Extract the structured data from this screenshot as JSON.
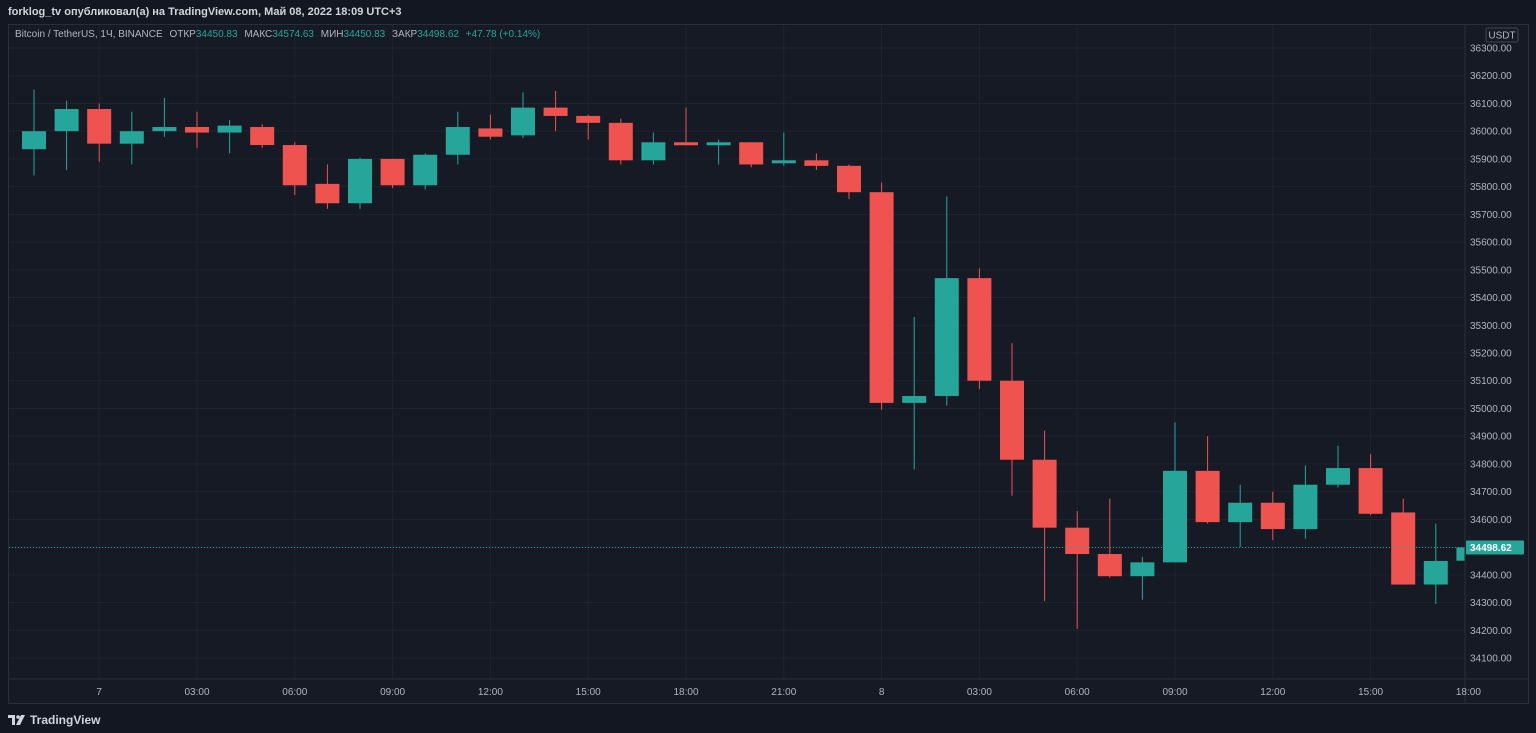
{
  "header": {
    "publish_line": "forklog_tv опубликовал(а) на TradingView.com, Май 08, 2022 18:09 UTC+3"
  },
  "legend": {
    "symbol": "Bitcoin / TetherUS, 1Ч, BINANCE",
    "open_label": "ОТКР",
    "open_value": "34450.83",
    "high_label": "МАКС",
    "high_value": "34574.63",
    "low_label": "МИН",
    "low_value": "34450.83",
    "close_label": "ЗАКР",
    "close_value": "34498.62",
    "change": "+47.78 (+0.14%)"
  },
  "colors": {
    "up": "#26a69a",
    "down": "#ef5350",
    "background": "#161a25",
    "grid": "#1f2330",
    "text": "#b2b5be"
  },
  "footer": {
    "brand": "TradingView",
    "logo_icon": "tradingview-logo-icon"
  },
  "chart_data": {
    "type": "candlestick",
    "title": "Bitcoin / TetherUS, 1Ч, BINANCE",
    "currency": "USDT",
    "ylim": [
      34000,
      36320
    ],
    "y_ticks": [
      34100,
      34200,
      34300,
      34400,
      34500,
      34600,
      34700,
      34800,
      34900,
      35000,
      35100,
      35200,
      35300,
      35400,
      35500,
      35600,
      35700,
      35800,
      35900,
      36000,
      36100,
      36200,
      36300
    ],
    "x_ticks": [
      {
        "label": "7",
        "bar": 2
      },
      {
        "label": "03:00",
        "bar": 5
      },
      {
        "label": "06:00",
        "bar": 8
      },
      {
        "label": "09:00",
        "bar": 11
      },
      {
        "label": "12:00",
        "bar": 14
      },
      {
        "label": "15:00",
        "bar": 17
      },
      {
        "label": "18:00",
        "bar": 20
      },
      {
        "label": "21:00",
        "bar": 23
      },
      {
        "label": "8",
        "bar": 26
      },
      {
        "label": "03:00",
        "bar": 29
      },
      {
        "label": "06:00",
        "bar": 32
      },
      {
        "label": "09:00",
        "bar": 35
      },
      {
        "label": "12:00",
        "bar": 38
      },
      {
        "label": "15:00",
        "bar": 41
      },
      {
        "label": "18:00",
        "bar": 44
      }
    ],
    "last_price": 34498.62,
    "last_price_label": "34498.62",
    "candles": [
      {
        "o": 35935,
        "h": 36150,
        "l": 35840,
        "c": 36000
      },
      {
        "o": 36000,
        "h": 36110,
        "l": 35860,
        "c": 36080
      },
      {
        "o": 36080,
        "h": 36100,
        "l": 35890,
        "c": 35955
      },
      {
        "o": 35955,
        "h": 36070,
        "l": 35880,
        "c": 36000
      },
      {
        "o": 36000,
        "h": 36120,
        "l": 35980,
        "c": 36015
      },
      {
        "o": 36015,
        "h": 36070,
        "l": 35940,
        "c": 35995
      },
      {
        "o": 35995,
        "h": 36040,
        "l": 35920,
        "c": 36020
      },
      {
        "o": 36015,
        "h": 36025,
        "l": 35940,
        "c": 35950
      },
      {
        "o": 35950,
        "h": 35960,
        "l": 35770,
        "c": 35805
      },
      {
        "o": 35810,
        "h": 35880,
        "l": 35720,
        "c": 35740
      },
      {
        "o": 35740,
        "h": 35905,
        "l": 35720,
        "c": 35900
      },
      {
        "o": 35900,
        "h": 35900,
        "l": 35795,
        "c": 35805
      },
      {
        "o": 35805,
        "h": 35920,
        "l": 35790,
        "c": 35915
      },
      {
        "o": 35915,
        "h": 36070,
        "l": 35880,
        "c": 36015
      },
      {
        "o": 36010,
        "h": 36060,
        "l": 35970,
        "c": 35980
      },
      {
        "o": 35985,
        "h": 36140,
        "l": 35975,
        "c": 36085
      },
      {
        "o": 36085,
        "h": 36145,
        "l": 36000,
        "c": 36055
      },
      {
        "o": 36055,
        "h": 36060,
        "l": 35970,
        "c": 36030
      },
      {
        "o": 36030,
        "h": 36045,
        "l": 35880,
        "c": 35895
      },
      {
        "o": 35895,
        "h": 35995,
        "l": 35880,
        "c": 35960
      },
      {
        "o": 35960,
        "h": 36085,
        "l": 35955,
        "c": 35955
      },
      {
        "o": 35960,
        "h": 35970,
        "l": 35880,
        "c": 35960
      },
      {
        "o": 35960,
        "h": 35960,
        "l": 35870,
        "c": 35880
      },
      {
        "o": 35885,
        "h": 35995,
        "l": 35875,
        "c": 35895
      },
      {
        "o": 35895,
        "h": 35920,
        "l": 35860,
        "c": 35875
      },
      {
        "o": 35875,
        "h": 35880,
        "l": 35755,
        "c": 35780
      },
      {
        "o": 35780,
        "h": 35815,
        "l": 34995,
        "c": 35020
      },
      {
        "o": 35020,
        "h": 35330,
        "l": 34780,
        "c": 35045
      },
      {
        "o": 35045,
        "h": 35765,
        "l": 35010,
        "c": 35470
      },
      {
        "o": 35470,
        "h": 35505,
        "l": 35070,
        "c": 35100
      },
      {
        "o": 35100,
        "h": 35235,
        "l": 34685,
        "c": 34815
      },
      {
        "o": 34815,
        "h": 34920,
        "l": 34305,
        "c": 34570
      },
      {
        "o": 34570,
        "h": 34630,
        "l": 34205,
        "c": 34475
      },
      {
        "o": 34475,
        "h": 34675,
        "l": 34390,
        "c": 34395
      },
      {
        "o": 34395,
        "h": 34465,
        "l": 34310,
        "c": 34445
      },
      {
        "o": 34445,
        "h": 34950,
        "l": 34445,
        "c": 34775
      },
      {
        "o": 34775,
        "h": 34900,
        "l": 34585,
        "c": 34590
      },
      {
        "o": 34590,
        "h": 34725,
        "l": 34500,
        "c": 34660
      },
      {
        "o": 34660,
        "h": 34700,
        "l": 34525,
        "c": 34565
      },
      {
        "o": 34565,
        "h": 34795,
        "l": 34530,
        "c": 34725
      },
      {
        "o": 34725,
        "h": 34865,
        "l": 34715,
        "c": 34785
      },
      {
        "o": 34785,
        "h": 34835,
        "l": 34615,
        "c": 34620
      },
      {
        "o": 34625,
        "h": 34675,
        "l": 34365,
        "c": 34365
      },
      {
        "o": 34365,
        "h": 34585,
        "l": 34295,
        "c": 34450
      },
      {
        "o": 34450.83,
        "h": 34574.63,
        "l": 34450.83,
        "c": 34498.62
      }
    ]
  }
}
